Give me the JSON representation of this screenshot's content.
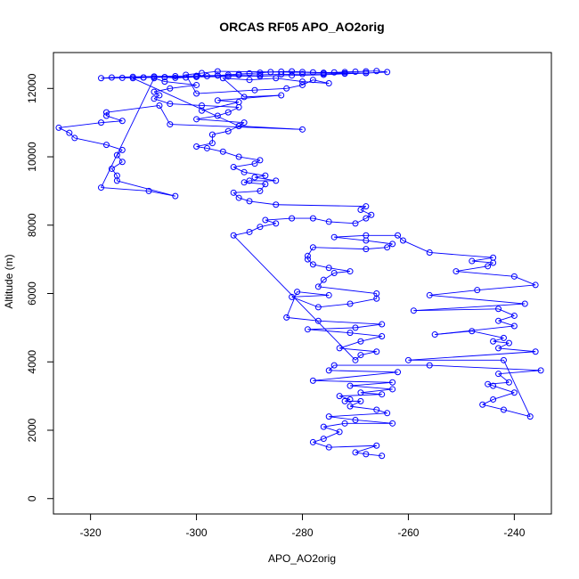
{
  "chart_data": {
    "type": "line",
    "title": "ORCAS RF05 APO_AO2orig",
    "xlabel": "APO_AO2orig",
    "ylabel": "Altitude (m)",
    "xlim": [
      -327,
      -233
    ],
    "ylim": [
      -450,
      13050
    ],
    "xticks": [
      -320,
      -300,
      -280,
      -260,
      -240
    ],
    "yticks": [
      0,
      2000,
      4000,
      6000,
      8000,
      10000,
      12000
    ],
    "marker": "open-circle",
    "line_style": "solid",
    "grid": false,
    "legend": "none",
    "series": [
      {
        "color": "#0000ff",
        "points": [
          [
            -265,
            1250
          ],
          [
            -268,
            1300
          ],
          [
            -270,
            1350
          ],
          [
            -266,
            1550
          ],
          [
            -275,
            1500
          ],
          [
            -278,
            1650
          ],
          [
            -276,
            1750
          ],
          [
            -273,
            1950
          ],
          [
            -276,
            2100
          ],
          [
            -272,
            2200
          ],
          [
            -263,
            2200
          ],
          [
            -270,
            2300
          ],
          [
            -275,
            2400
          ],
          [
            -264,
            2500
          ],
          [
            -266,
            2600
          ],
          [
            -271,
            2700
          ],
          [
            -269,
            2850
          ],
          [
            -272,
            2850
          ],
          [
            -271,
            2900
          ],
          [
            -273,
            3000
          ],
          [
            -265,
            3050
          ],
          [
            -269,
            3100
          ],
          [
            -263,
            3200
          ],
          [
            -271,
            3300
          ],
          [
            -263,
            3400
          ],
          [
            -278,
            3450
          ],
          [
            -262,
            3700
          ],
          [
            -275,
            3750
          ],
          [
            -274,
            3900
          ],
          [
            -256,
            3900
          ],
          [
            -235,
            3750
          ],
          [
            -243,
            3650
          ],
          [
            -241,
            3400
          ],
          [
            -245,
            3350
          ],
          [
            -244,
            3300
          ],
          [
            -240,
            3100
          ],
          [
            -244,
            2900
          ],
          [
            -246,
            2750
          ],
          [
            -242,
            2600
          ],
          [
            -237,
            2400
          ],
          [
            -242,
            4050
          ],
          [
            -260,
            4050
          ],
          [
            -236,
            4300
          ],
          [
            -243,
            4400
          ],
          [
            -241,
            4550
          ],
          [
            -244,
            4600
          ],
          [
            -242,
            4700
          ],
          [
            -248,
            4900
          ],
          [
            -255,
            4800
          ],
          [
            -240,
            5050
          ],
          [
            -243,
            5200
          ],
          [
            -240,
            5350
          ],
          [
            -243,
            5550
          ],
          [
            -259,
            5500
          ],
          [
            -238,
            5700
          ],
          [
            -256,
            5950
          ],
          [
            -247,
            6100
          ],
          [
            -236,
            6250
          ],
          [
            -240,
            6500
          ],
          [
            -251,
            6650
          ],
          [
            -245,
            6800
          ],
          [
            -244,
            6900
          ],
          [
            -248,
            6950
          ],
          [
            -244,
            7050
          ],
          [
            -256,
            7200
          ],
          [
            -261,
            7550
          ],
          [
            -262,
            7700
          ],
          [
            -268,
            7700
          ],
          [
            -274,
            7650
          ],
          [
            -268,
            7550
          ],
          [
            -263,
            7450
          ],
          [
            -264,
            7350
          ],
          [
            -268,
            7300
          ],
          [
            -278,
            7350
          ],
          [
            -279,
            7100
          ],
          [
            -279,
            7000
          ],
          [
            -278,
            6850
          ],
          [
            -275,
            6750
          ],
          [
            -271,
            6650
          ],
          [
            -274,
            6600
          ],
          [
            -276,
            6400
          ],
          [
            -277,
            6200
          ],
          [
            -266,
            6000
          ],
          [
            -266,
            5850
          ],
          [
            -271,
            5700
          ],
          [
            -277,
            5600
          ],
          [
            -282,
            5900
          ],
          [
            -275,
            5950
          ],
          [
            -281,
            6050
          ],
          [
            -283,
            5300
          ],
          [
            -277,
            5200
          ],
          [
            -265,
            5100
          ],
          [
            -270,
            5000
          ],
          [
            -279,
            4950
          ],
          [
            -271,
            4850
          ],
          [
            -265,
            4750
          ],
          [
            -269,
            4600
          ],
          [
            -273,
            4400
          ],
          [
            -266,
            4300
          ],
          [
            -269,
            4200
          ],
          [
            -270,
            4050
          ],
          [
            -293,
            7700
          ],
          [
            -290,
            7800
          ],
          [
            -288,
            7950
          ],
          [
            -285,
            8050
          ],
          [
            -287,
            8150
          ],
          [
            -282,
            8200
          ],
          [
            -278,
            8200
          ],
          [
            -275,
            8100
          ],
          [
            -270,
            8050
          ],
          [
            -268,
            8200
          ],
          [
            -267,
            8300
          ],
          [
            -269,
            8450
          ],
          [
            -268,
            8550
          ],
          [
            -285,
            8600
          ],
          [
            -290,
            8700
          ],
          [
            -292,
            8800
          ],
          [
            -293,
            8950
          ],
          [
            -288,
            9000
          ],
          [
            -287,
            9200
          ],
          [
            -291,
            9250
          ],
          [
            -290,
            9300
          ],
          [
            -285,
            9300
          ],
          [
            -289,
            9400
          ],
          [
            -287,
            9450
          ],
          [
            -291,
            9550
          ],
          [
            -293,
            9700
          ],
          [
            -289,
            9800
          ],
          [
            -288,
            9900
          ],
          [
            -292,
            10000
          ],
          [
            -295,
            10150
          ],
          [
            -298,
            10250
          ],
          [
            -300,
            10300
          ],
          [
            -297,
            10400
          ],
          [
            -297,
            10650
          ],
          [
            -294,
            10750
          ],
          [
            -292,
            10900
          ],
          [
            -291,
            11000
          ],
          [
            -300,
            11100
          ],
          [
            -296,
            11200
          ],
          [
            -294,
            11300
          ],
          [
            -292,
            11450
          ],
          [
            -299,
            11500
          ],
          [
            -305,
            11550
          ],
          [
            -308,
            11700
          ],
          [
            -307,
            11800
          ],
          [
            -308,
            11900
          ],
          [
            -305,
            12000
          ],
          [
            -300,
            12100
          ],
          [
            -306,
            12200
          ],
          [
            -308,
            12300
          ],
          [
            -318,
            9100
          ],
          [
            -309,
            9000
          ],
          [
            -304,
            8850
          ],
          [
            -315,
            9300
          ],
          [
            -315,
            9450
          ],
          [
            -316,
            9650
          ],
          [
            -314,
            9850
          ],
          [
            -315,
            10050
          ],
          [
            -314,
            10200
          ],
          [
            -317,
            10350
          ],
          [
            -323,
            10550
          ],
          [
            -324,
            10700
          ],
          [
            -326,
            10850
          ],
          [
            -318,
            11000
          ],
          [
            -314,
            11050
          ],
          [
            -317,
            11200
          ],
          [
            -317,
            11300
          ],
          [
            -307,
            11500
          ],
          [
            -305,
            10950
          ],
          [
            -280,
            10800
          ],
          [
            -292,
            10900
          ],
          [
            -312,
            12300
          ],
          [
            -310,
            12320
          ],
          [
            -308,
            12340
          ],
          [
            -306,
            12330
          ],
          [
            -304,
            12310
          ],
          [
            -302,
            12320
          ],
          [
            -300,
            12340
          ],
          [
            -298,
            12360
          ],
          [
            -296,
            12380
          ],
          [
            -294,
            12400
          ],
          [
            -292,
            12420
          ],
          [
            -290,
            12440
          ],
          [
            -288,
            12460
          ],
          [
            -286,
            12480
          ],
          [
            -284,
            12490
          ],
          [
            -282,
            12500
          ],
          [
            -280,
            12480
          ],
          [
            -278,
            12470
          ],
          [
            -276,
            12460
          ],
          [
            -274,
            12470
          ],
          [
            -272,
            12480
          ],
          [
            -270,
            12490
          ],
          [
            -268,
            12500
          ],
          [
            -266,
            12510
          ],
          [
            -264,
            12480
          ],
          [
            -268,
            12450
          ],
          [
            -272,
            12430
          ],
          [
            -276,
            12400
          ],
          [
            -282,
            12380
          ],
          [
            -288,
            12360
          ],
          [
            -294,
            12350
          ],
          [
            -300,
            12340
          ],
          [
            -306,
            12330
          ],
          [
            -310,
            12320
          ],
          [
            -314,
            12310
          ],
          [
            -318,
            12300
          ],
          [
            -316,
            12320
          ],
          [
            -312,
            12340
          ],
          [
            -308,
            12350
          ],
          [
            -304,
            12360
          ],
          [
            -300,
            12370
          ],
          [
            -296,
            12380
          ],
          [
            -292,
            12390
          ],
          [
            -288,
            12400
          ],
          [
            -284,
            12410
          ],
          [
            -280,
            12420
          ],
          [
            -276,
            12430
          ],
          [
            -272,
            12440
          ],
          [
            -268,
            12450
          ],
          [
            -296,
            12500
          ],
          [
            -299,
            12450
          ],
          [
            -302,
            12400
          ],
          [
            -300,
            11850
          ],
          [
            -289,
            11950
          ],
          [
            -283,
            12000
          ],
          [
            -280,
            12100
          ],
          [
            -278,
            12250
          ],
          [
            -275,
            12150
          ],
          [
            -280,
            12200
          ],
          [
            -285,
            12300
          ],
          [
            -290,
            12250
          ],
          [
            -295,
            12300
          ],
          [
            -291,
            11750
          ],
          [
            -284,
            11800
          ],
          [
            -296,
            11650
          ],
          [
            -292,
            11600
          ],
          [
            -299,
            11350
          ]
        ]
      }
    ]
  }
}
